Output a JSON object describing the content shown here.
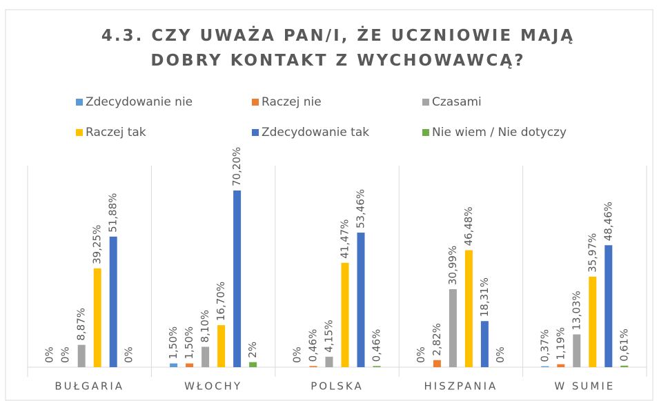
{
  "chart_data": {
    "type": "bar",
    "title": "4.3. CZY UWAŻA PAN/I, ŻE UCZNIOWIE MAJĄ DOBRY KONTAKT Z WYCHOWAWCĄ?",
    "categories": [
      "BUŁGARIA",
      "WŁOCHY",
      "POLSKA",
      "HISZPANIA",
      "W SUMIE"
    ],
    "series": [
      {
        "name": "Zdecydowanie nie",
        "color": "#5b9bd5",
        "values": [
          0,
          1.5,
          0,
          0,
          0.37
        ],
        "value_labels": [
          "0%",
          "1,50%",
          "0%",
          "0%",
          "0,37%"
        ]
      },
      {
        "name": "Raczej nie",
        "color": "#ed7d31",
        "values": [
          0,
          1.5,
          0.46,
          2.82,
          1.19
        ],
        "value_labels": [
          "0%",
          "1,50%",
          "0,46%",
          "2,82%",
          "1,19%"
        ]
      },
      {
        "name": "Czasami",
        "color": "#a5a5a5",
        "values": [
          8.87,
          8.1,
          4.15,
          30.99,
          13.03
        ],
        "value_labels": [
          "8,87%",
          "8,10%",
          "4,15%",
          "30,99%",
          "13,03%"
        ]
      },
      {
        "name": "Raczej tak",
        "color": "#ffc000",
        "values": [
          39.25,
          16.7,
          41.47,
          46.48,
          35.97
        ],
        "value_labels": [
          "39,25%",
          "16,70%",
          "41,47%",
          "46,48%",
          "35,97%"
        ]
      },
      {
        "name": "Zdecydowanie tak",
        "color": "#4472c4",
        "values": [
          51.88,
          70.2,
          53.46,
          18.31,
          48.46
        ],
        "value_labels": [
          "51,88%",
          "70,20%",
          "53,46%",
          "18,31%",
          "48,46%"
        ]
      },
      {
        "name": "Nie wiem / Nie dotyczy",
        "color": "#70ad47",
        "values": [
          0,
          2,
          0.46,
          0,
          0.61
        ],
        "value_labels": [
          "0%",
          "2%",
          "0,46%",
          "0%",
          "0,61%"
        ]
      }
    ],
    "legend": "top"
  }
}
